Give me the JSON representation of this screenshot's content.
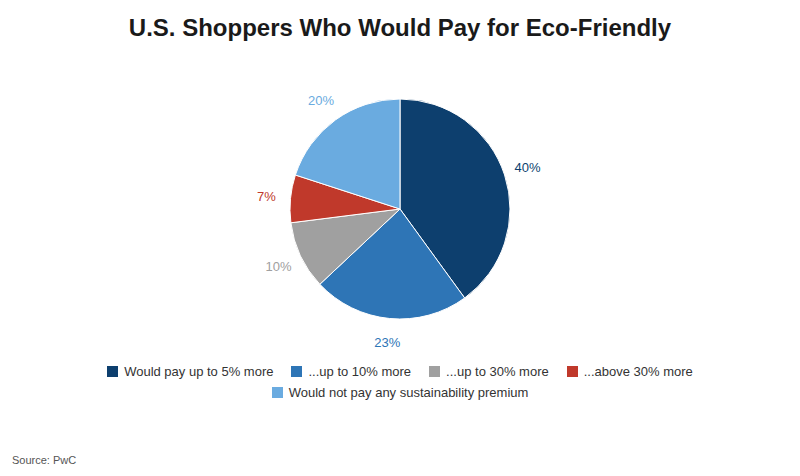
{
  "chart_data": {
    "type": "pie",
    "title": "U.S. Shoppers Who Would Pay for Eco-Friendly",
    "categories": [
      "Would pay up to 5% more",
      "...up to 10% more",
      "...up to 30% more",
      "...above 30% more",
      "Would not pay any sustainability premium"
    ],
    "values": [
      40,
      23,
      10,
      7,
      20
    ],
    "value_labels": [
      "40%",
      "23%",
      "10%",
      "7%",
      "20%"
    ],
    "colors": [
      "#0d3f6e",
      "#2e75b6",
      "#a0a0a0",
      "#c0392b",
      "#6aabe0"
    ],
    "data_labels": true,
    "legend": "bottom",
    "annotations": [
      "Source: PwC"
    ]
  }
}
